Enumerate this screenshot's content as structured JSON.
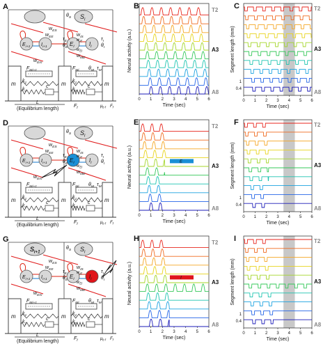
{
  "panels": [
    {
      "letter": "A",
      "inhibited": ""
    },
    {
      "letter": "D",
      "inhibited": "E"
    },
    {
      "letter": "G",
      "inhibited": "I"
    }
  ],
  "schematic": {
    "s_left": "S",
    "s_right": "S",
    "s_left_sub": "i+1",
    "s_right_sub": "i",
    "e_left": "E",
    "i_left": "I",
    "e_right": "E",
    "i_right": "I",
    "w_es": "w",
    "w_es_sub": "ES",
    "w_is": "w",
    "w_is_sub": "IS",
    "w_ee": "w",
    "w_ee_sub": "EE",
    "w_ie": "w",
    "w_ie_sub": "IE",
    "w_ei": "w",
    "w_ei_sub": "EI",
    "w_me": "w",
    "w_me_sub": "ME",
    "w_em": "w",
    "w_em_sub": "Em",
    "tau_e": "τ",
    "tau_i": "τ",
    "theta_e": "θ",
    "theta_i": "θ",
    "theta_s": "θ",
    "theta_m": "θ",
    "tau_m": "τ",
    "f_m_left": "F",
    "f_m_right": "F",
    "k1": "k",
    "k2": "k",
    "c": "c",
    "m": "m",
    "l": "L",
    "equilibrium": "(Equilibrium length)",
    "f_f": "F",
    "mu_f": "μ",
    "mu_f_tail": "F"
  },
  "panel_b": {
    "letters": [
      "B",
      "E",
      "H"
    ],
    "ylabel": "Neural activity (a.u.)",
    "xlabel": "Time (sec)",
    "xticks": [
      "0",
      "1",
      "2",
      "3",
      "4",
      "5",
      "6"
    ],
    "label_t2": "T2",
    "label_a3": "A3",
    "label_a8": "A8",
    "marker_e": "E",
    "marker_i": "I"
  },
  "panel_c": {
    "letters": [
      "C",
      "F",
      "I"
    ],
    "ylabel": "Segment length (mm)",
    "xlabel": "Time (sec)",
    "xticks": [
      "0",
      "1",
      "2",
      "3",
      "4",
      "5",
      "6"
    ],
    "yticks": [
      "1",
      "0.4"
    ],
    "label_t2": "T2",
    "label_a3": "A3",
    "label_a8": "A8"
  },
  "chart_data": [
    {
      "type": "line",
      "title": "",
      "xlabel": "Time (sec)",
      "ylabel": "Neural activity (a.u.)",
      "xlim": [
        0,
        6
      ],
      "note_rows": [
        "T2",
        "A3",
        "A8"
      ],
      "rows": 10,
      "condition": "control",
      "peak_times_row0": [
        0.3,
        1.1,
        1.9,
        2.7,
        3.5,
        4.3,
        5.1
      ],
      "wave_delay_per_row_sec": 0.08,
      "colors": [
        "#e8251c",
        "#f06a1f",
        "#f5a623",
        "#e8d41c",
        "#a4d62a",
        "#35c85a",
        "#1cc4b0",
        "#1aa2e0",
        "#2566e8",
        "#1b1bb8"
      ]
    },
    {
      "type": "line",
      "title": "",
      "xlabel": "Time (sec)",
      "ylabel": "Segment length (mm)",
      "xlim": [
        0,
        6
      ],
      "yticks": [
        "1",
        "0.4"
      ],
      "rows": 10,
      "condition": "control",
      "shaded_interval": [
        3.5,
        4.5
      ]
    }
  ],
  "colors": {
    "excitatory_highlight": "#1a8fd6",
    "inhibitory_highlight": "#e0141a",
    "shade": "#c8c8c8",
    "red_arrow": "#e01a1a"
  }
}
